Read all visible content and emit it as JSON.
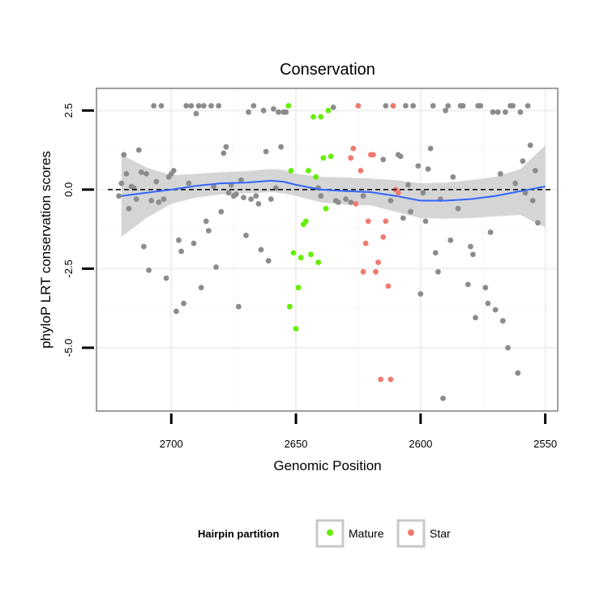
{
  "chart_data": {
    "type": "scatter",
    "title": "Conservation",
    "xlabel": "Genomic Position",
    "ylabel": "phyloP LRT conservation scores",
    "x_reversed": true,
    "xlim": [
      2730,
      2545
    ],
    "ylim": [
      -7.0,
      3.2
    ],
    "x_ticks": [
      2700,
      2650,
      2600,
      2550
    ],
    "y_ticks": [
      2.5,
      0.0,
      -2.5,
      -5.0
    ],
    "reference_line": {
      "y": 0,
      "style": "dashed"
    },
    "grid": true,
    "legend": {
      "title": "Hairpin partition",
      "position": "bottom",
      "entries": [
        {
          "label": "Mature",
          "color": "#66ee00"
        },
        {
          "label": "Star",
          "color": "#f07a70"
        }
      ]
    },
    "colors": {
      "other": "#8c8c8c",
      "Mature": "#66ee00",
      "Star": "#f07a70",
      "smooth": "#3366ff",
      "band": "#d3d3d3"
    },
    "series": [
      {
        "group": "other",
        "points": [
          [
            2721,
            -0.2
          ],
          [
            2720,
            0.2
          ],
          [
            2719,
            1.1
          ],
          [
            2718,
            0.5
          ],
          [
            2717,
            -0.6
          ],
          [
            2716,
            0.1
          ],
          [
            2715,
            0.05
          ],
          [
            2714,
            -0.3
          ],
          [
            2713,
            1.25
          ],
          [
            2712,
            0.55
          ],
          [
            2711,
            -1.8
          ],
          [
            2710,
            0.5
          ],
          [
            2709,
            -2.55
          ],
          [
            2708,
            -0.35
          ],
          [
            2707,
            2.65
          ],
          [
            2706,
            0.25
          ],
          [
            2705,
            -0.4
          ],
          [
            2704,
            2.65
          ],
          [
            2703,
            -0.3
          ],
          [
            2702,
            -2.8
          ],
          [
            2701,
            0.4
          ],
          [
            2700,
            0.5
          ],
          [
            2699,
            0.6
          ],
          [
            2698,
            -3.85
          ],
          [
            2697,
            -1.6
          ],
          [
            2696,
            -1.95
          ],
          [
            2695,
            -3.6
          ],
          [
            2694,
            2.65
          ],
          [
            2693,
            0.2
          ],
          [
            2692,
            2.65
          ],
          [
            2691,
            -1.7
          ],
          [
            2690,
            2.4
          ],
          [
            2689,
            2.65
          ],
          [
            2688,
            -3.1
          ],
          [
            2687,
            2.65
          ],
          [
            2686,
            -1.0
          ],
          [
            2685,
            -1.3
          ],
          [
            2684,
            2.65
          ],
          [
            2683,
            0.1
          ],
          [
            2682,
            -2.45
          ],
          [
            2681,
            2.65
          ],
          [
            2680,
            -0.7
          ],
          [
            2679,
            1.15
          ],
          [
            2678,
            1.35
          ],
          [
            2677,
            -0.1
          ],
          [
            2676,
            0.15
          ],
          [
            2675,
            -0.2
          ],
          [
            2674,
            -0.15
          ],
          [
            2673,
            -3.7
          ],
          [
            2672,
            0.3
          ],
          [
            2671,
            -0.25
          ],
          [
            2670,
            -1.45
          ],
          [
            2669,
            2.45
          ],
          [
            2668,
            -0.3
          ],
          [
            2667,
            2.65
          ],
          [
            2666,
            -0.2
          ],
          [
            2665,
            -0.45
          ],
          [
            2664,
            -1.9
          ],
          [
            2663,
            2.5
          ],
          [
            2662,
            1.2
          ],
          [
            2661,
            -2.25
          ],
          [
            2660,
            -0.3
          ],
          [
            2659,
            2.55
          ],
          [
            2658,
            0.05
          ],
          [
            2657,
            2.45
          ],
          [
            2656,
            1.35
          ],
          [
            2655,
            2.45
          ],
          [
            2654,
            2.45
          ],
          [
            2641,
            0.05
          ],
          [
            2640,
            -0.2
          ],
          [
            2635,
            2.6
          ],
          [
            2634,
            -0.35
          ],
          [
            2633,
            -0.4
          ],
          [
            2630,
            -0.3
          ],
          [
            2628,
            -0.4
          ],
          [
            2623,
            -0.2
          ],
          [
            2615,
            0.95
          ],
          [
            2614,
            2.65
          ],
          [
            2612,
            -0.35
          ],
          [
            2611,
            2.65
          ],
          [
            2609,
            1.1
          ],
          [
            2608,
            1.05
          ],
          [
            2607,
            -0.9
          ],
          [
            2606,
            2.65
          ],
          [
            2605,
            0.15
          ],
          [
            2604,
            -0.7
          ],
          [
            2603,
            2.65
          ],
          [
            2601,
            0.75
          ],
          [
            2600,
            -3.3
          ],
          [
            2599,
            -0.1
          ],
          [
            2598,
            -1.0
          ],
          [
            2597,
            0.65
          ],
          [
            2596,
            1.3
          ],
          [
            2595,
            2.65
          ],
          [
            2594,
            -2.0
          ],
          [
            2593,
            -2.6
          ],
          [
            2592,
            -0.3
          ],
          [
            2591,
            -6.6
          ],
          [
            2590,
            2.5
          ],
          [
            2589,
            2.65
          ],
          [
            2588,
            -1.6
          ],
          [
            2587,
            0.4
          ],
          [
            2585,
            -0.6
          ],
          [
            2584,
            2.65
          ],
          [
            2583,
            2.65
          ],
          [
            2581,
            -3.0
          ],
          [
            2580,
            -1.8
          ],
          [
            2579,
            -2.05
          ],
          [
            2578,
            -4.05
          ],
          [
            2577,
            2.65
          ],
          [
            2576,
            2.65
          ],
          [
            2574,
            -3.1
          ],
          [
            2573,
            -3.6
          ],
          [
            2572,
            -1.35
          ],
          [
            2571,
            2.45
          ],
          [
            2570,
            -3.8
          ],
          [
            2569,
            2.45
          ],
          [
            2568,
            0.5
          ],
          [
            2567,
            -4.15
          ],
          [
            2566,
            2.45
          ],
          [
            2565,
            -5.0
          ],
          [
            2564,
            2.65
          ],
          [
            2563,
            2.65
          ],
          [
            2562,
            0.2
          ],
          [
            2561,
            -5.8
          ],
          [
            2560,
            2.45
          ],
          [
            2559,
            0.9
          ],
          [
            2558,
            -0.1
          ],
          [
            2557,
            2.65
          ],
          [
            2556,
            1.4
          ],
          [
            2555,
            -0.35
          ],
          [
            2554,
            0.6
          ],
          [
            2553,
            -1.05
          ]
        ]
      },
      {
        "group": "Mature",
        "points": [
          [
            2653,
            2.65
          ],
          [
            2652,
            0.6
          ],
          [
            2651,
            -2.0
          ],
          [
            2650,
            -4.4
          ],
          [
            2649,
            -3.1
          ],
          [
            2648,
            -2.15
          ],
          [
            2647,
            -1.1
          ],
          [
            2646,
            -1.0
          ],
          [
            2645,
            0.6
          ],
          [
            2644,
            -2.05
          ],
          [
            2643,
            2.3
          ],
          [
            2642,
            0.4
          ],
          [
            2641,
            -2.3
          ],
          [
            2640,
            2.3
          ],
          [
            2639,
            1.0
          ],
          [
            2638,
            -0.6
          ],
          [
            2637,
            2.5
          ],
          [
            2636,
            1.05
          ],
          [
            2652.5,
            -3.7
          ]
        ]
      },
      {
        "group": "Star",
        "points": [
          [
            2628,
            1.0
          ],
          [
            2627,
            1.3
          ],
          [
            2626,
            -0.45
          ],
          [
            2625,
            2.65
          ],
          [
            2624,
            0.6
          ],
          [
            2623,
            -2.6
          ],
          [
            2622,
            -1.7
          ],
          [
            2621,
            -1.0
          ],
          [
            2620,
            1.1
          ],
          [
            2619,
            1.1
          ],
          [
            2618,
            -2.6
          ],
          [
            2617,
            -2.3
          ],
          [
            2616,
            -6.0
          ],
          [
            2615,
            -1.5
          ],
          [
            2614,
            -1.0
          ],
          [
            2613,
            -3.05
          ],
          [
            2612,
            -6.0
          ],
          [
            2611,
            2.65
          ],
          [
            2610,
            0.0
          ],
          [
            2609,
            -0.1
          ]
        ]
      }
    ],
    "smooth_line": {
      "x": [
        2720,
        2710,
        2700,
        2690,
        2680,
        2670,
        2660,
        2655,
        2650,
        2640,
        2630,
        2620,
        2610,
        2600,
        2590,
        2580,
        2570,
        2560,
        2550
      ],
      "y": [
        -0.2,
        -0.1,
        0.0,
        0.12,
        0.2,
        0.22,
        0.28,
        0.25,
        0.15,
        0.0,
        -0.05,
        -0.08,
        -0.2,
        -0.35,
        -0.35,
        -0.3,
        -0.2,
        -0.05,
        0.1
      ],
      "ci_upper": [
        1.1,
        0.7,
        0.45,
        0.5,
        0.55,
        0.58,
        0.65,
        0.62,
        0.5,
        0.4,
        0.38,
        0.35,
        0.3,
        0.2,
        0.22,
        0.3,
        0.4,
        0.65,
        1.4
      ],
      "ci_lower": [
        -1.5,
        -0.9,
        -0.45,
        -0.25,
        -0.15,
        -0.12,
        -0.08,
        -0.12,
        -0.2,
        -0.4,
        -0.48,
        -0.5,
        -0.7,
        -0.9,
        -0.92,
        -0.9,
        -0.85,
        -0.8,
        -1.2
      ]
    }
  }
}
